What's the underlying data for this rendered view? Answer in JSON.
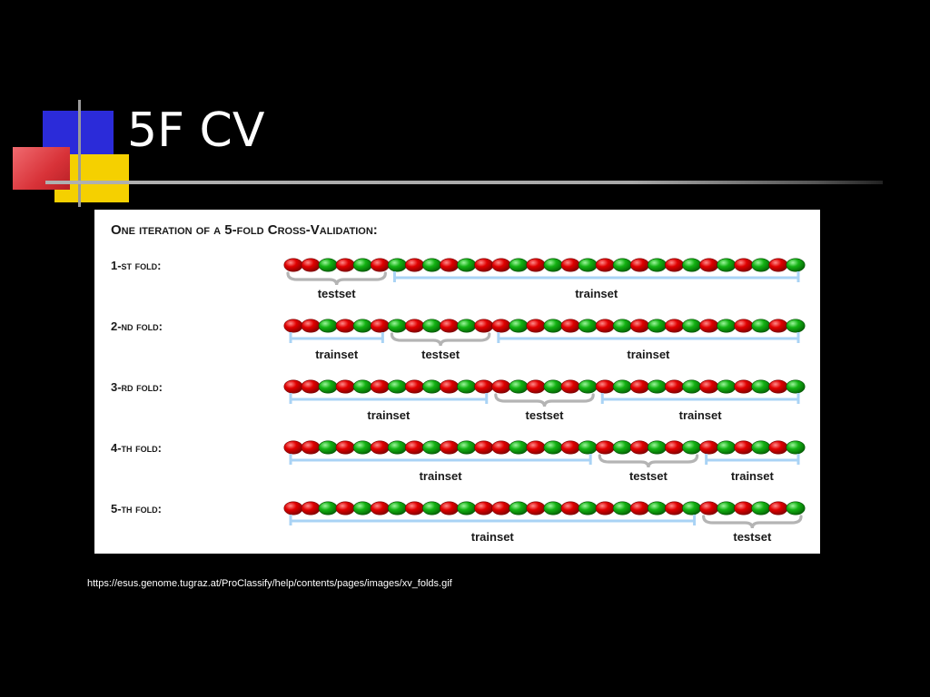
{
  "slide": {
    "title": "5F CV",
    "source_url": "https://esus.genome.tugraz.at/ProClassify/help/contents/pages/images/xv_folds.gif"
  },
  "figure": {
    "heading": "One iteration of a 5-fold Cross-Validation:",
    "bead_colors": {
      "red": "#e00000",
      "green": "#13b213",
      "bracket": "#a9d3f5",
      "brace": "#b4b4b4"
    },
    "bead_sequence": [
      "red",
      "red",
      "green",
      "red",
      "green",
      "red",
      "green",
      "red",
      "green",
      "red",
      "green",
      "red",
      "red",
      "green",
      "red",
      "green",
      "red",
      "green",
      "red",
      "green",
      "red",
      "green",
      "red",
      "green",
      "red",
      "green",
      "red",
      "green",
      "red",
      "green"
    ],
    "folds": [
      {
        "label": "1-st fold:",
        "segments": [
          {
            "type": "test",
            "label": "testset"
          },
          {
            "type": "train",
            "label": "trainset"
          }
        ]
      },
      {
        "label": "2-nd fold:",
        "segments": [
          {
            "type": "train",
            "label": "trainset"
          },
          {
            "type": "test",
            "label": "testset"
          },
          {
            "type": "train",
            "label": "trainset"
          }
        ]
      },
      {
        "label": "3-rd fold:",
        "segments": [
          {
            "type": "train",
            "label": "trainset"
          },
          {
            "type": "test",
            "label": "testset"
          },
          {
            "type": "train",
            "label": "trainset"
          }
        ]
      },
      {
        "label": "4-th fold:",
        "segments": [
          {
            "type": "train",
            "label": "trainset"
          },
          {
            "type": "test",
            "label": "testset"
          },
          {
            "type": "train",
            "label": "trainset"
          }
        ]
      },
      {
        "label": "5-th fold:",
        "segments": [
          {
            "type": "train",
            "label": "trainset"
          },
          {
            "type": "test",
            "label": "testset"
          }
        ]
      }
    ]
  }
}
